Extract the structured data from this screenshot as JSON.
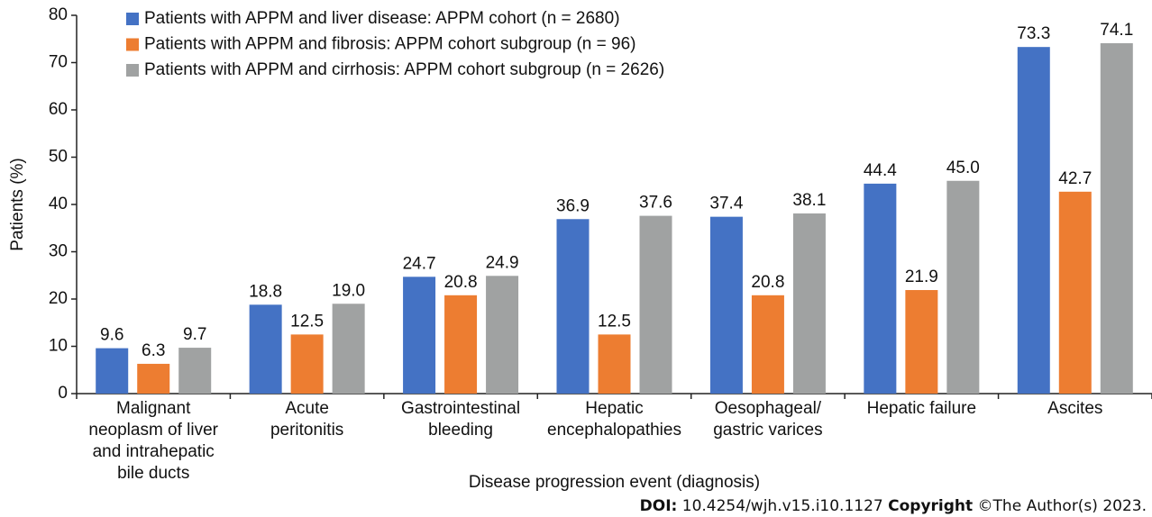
{
  "chart_data": {
    "type": "bar",
    "y_label": "Patients (%)",
    "x_label": "Disease progression event (diagnosis)",
    "categories": [
      "Malignant\nneoplasm of liver\nand intrahepatic\nbile ducts",
      "Acute\nperitonitis",
      "Gastrointestinal\nbleeding",
      "Hepatic\nencephalopathies",
      "Oesophageal/\ngastric varices",
      "Hepatic failure",
      "Ascites"
    ],
    "series": [
      {
        "name": "Patients with APPM and liver disease: APPM cohort (n = 2680)",
        "color": "#4472c4",
        "values": [
          9.6,
          18.8,
          24.7,
          36.9,
          37.4,
          44.4,
          73.3
        ],
        "value_labels": [
          "9.6",
          "18.8",
          "24.7",
          "36.9",
          "37.4",
          "44.4",
          "73.3"
        ]
      },
      {
        "name": "Patients with APPM and fibrosis: APPM cohort subgroup (n = 96)",
        "color": "#ed7d31",
        "values": [
          6.3,
          12.5,
          20.8,
          12.5,
          20.8,
          21.9,
          42.7
        ],
        "value_labels": [
          "6.3",
          "12.5",
          "20.8",
          "12.5",
          "20.8",
          "21.9",
          "42.7"
        ]
      },
      {
        "name": "Patients with APPM and cirrhosis: APPM cohort subgroup (n = 2626)",
        "color": "#a0a2a2",
        "values": [
          9.7,
          19.0,
          24.9,
          37.6,
          38.1,
          45.0,
          74.1
        ],
        "value_labels": [
          "9.7",
          "19.0",
          "24.9",
          "37.6",
          "38.1",
          "45.0",
          "74.1"
        ]
      }
    ],
    "ylim": [
      0,
      80
    ],
    "yticks": [
      0,
      10,
      20,
      30,
      40,
      50,
      60,
      70,
      80
    ],
    "legend": "top-left"
  },
  "footer": {
    "doi_label": "DOI:",
    "doi": "10.4254/wjh.v15.i10.1127",
    "copyright_label": "Copyright",
    "copyright": "©The Author(s) 2023."
  }
}
